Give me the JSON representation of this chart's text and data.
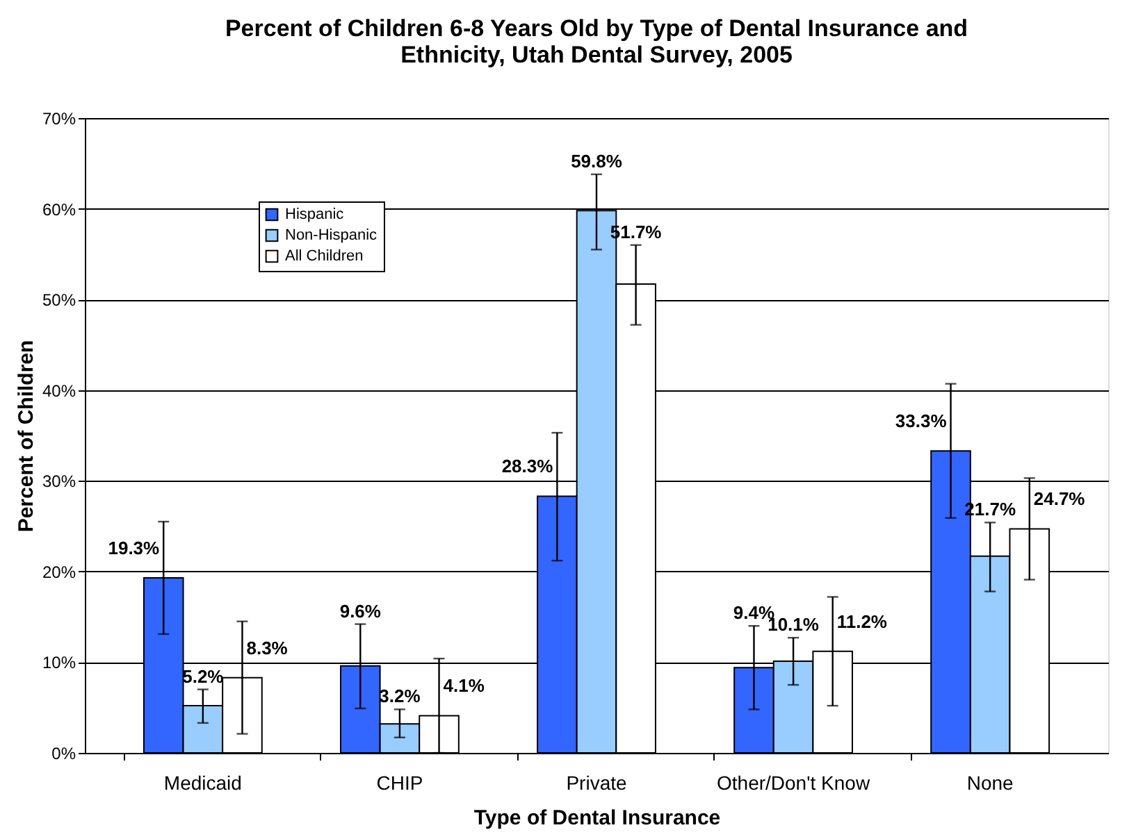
{
  "chart_data": {
    "type": "bar",
    "title": [
      "Percent of Children 6-8 Years Old by Type of Dental Insurance and",
      "Ethnicity, Utah Dental Survey, 2005"
    ],
    "xlabel": "Type of Dental Insurance",
    "ylabel": "Percent of Children",
    "categories": [
      "Medicaid",
      "CHIP",
      "Private",
      "Other/Don't Know",
      "None"
    ],
    "series": [
      {
        "name": "Hispanic",
        "color": "#3366ff",
        "values": [
          19.3,
          9.6,
          28.3,
          9.4,
          33.3
        ],
        "errors": [
          [
            13.1,
            25.5
          ],
          [
            4.9,
            14.2
          ],
          [
            21.2,
            35.3
          ],
          [
            4.8,
            14.0
          ],
          [
            25.9,
            40.7
          ]
        ],
        "value_labels": [
          "19.3%",
          "9.6%",
          "28.3%",
          "9.4%",
          "33.3%"
        ]
      },
      {
        "name": "Non-Hispanic",
        "color": "#99ccff",
        "values": [
          5.2,
          3.2,
          59.8,
          10.1,
          21.7
        ],
        "errors": [
          [
            3.3,
            7.0
          ],
          [
            1.7,
            4.8
          ],
          [
            55.5,
            63.8
          ],
          [
            7.5,
            12.7
          ],
          [
            17.8,
            25.4
          ]
        ],
        "value_labels": [
          "5.2%",
          "3.2%",
          "59.8%",
          "10.1%",
          "21.7%"
        ]
      },
      {
        "name": "All Children",
        "color": "#ffffff",
        "values": [
          8.3,
          4.1,
          51.7,
          11.2,
          24.7
        ],
        "errors": [
          [
            2.1,
            14.5
          ],
          [
            0,
            10.4
          ],
          [
            47.2,
            56.0
          ],
          [
            5.2,
            17.2
          ],
          [
            19.1,
            30.3
          ]
        ],
        "value_labels": [
          "8.3%",
          "4.1%",
          "51.7%",
          "11.2%",
          "24.7%"
        ]
      }
    ],
    "ylim": [
      0,
      70
    ],
    "yticks": [
      {
        "value": 0,
        "label": "0%"
      },
      {
        "value": 10,
        "label": "10%"
      },
      {
        "value": 20,
        "label": "20%"
      },
      {
        "value": 30,
        "label": "30%"
      },
      {
        "value": 40,
        "label": "40%"
      },
      {
        "value": 50,
        "label": "50%"
      },
      {
        "value": 60,
        "label": "60%"
      },
      {
        "value": 70,
        "label": "70%"
      }
    ],
    "grid": "y",
    "legend": "top left"
  }
}
